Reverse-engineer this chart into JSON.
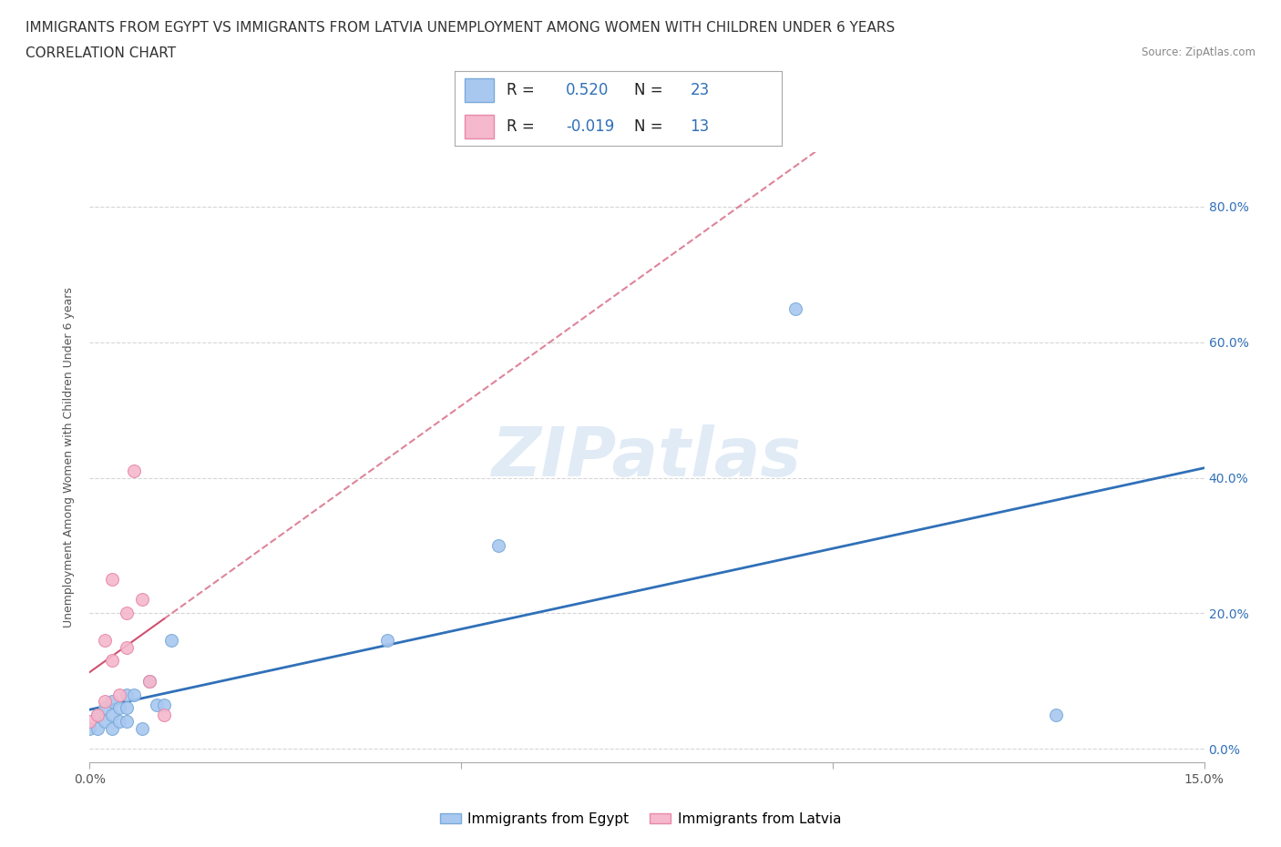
{
  "title_line1": "IMMIGRANTS FROM EGYPT VS IMMIGRANTS FROM LATVIA UNEMPLOYMENT AMONG WOMEN WITH CHILDREN UNDER 6 YEARS",
  "title_line2": "CORRELATION CHART",
  "source": "Source: ZipAtlas.com",
  "ylabel": "Unemployment Among Women with Children Under 6 years",
  "xlim": [
    0.0,
    0.15
  ],
  "ylim": [
    -0.02,
    0.88
  ],
  "yticks": [
    0.0,
    0.2,
    0.4,
    0.6,
    0.8
  ],
  "ytick_labels": [
    "0.0%",
    "20.0%",
    "40.0%",
    "60.0%",
    "80.0%"
  ],
  "xticks": [
    0.0,
    0.05,
    0.1,
    0.15
  ],
  "xtick_labels": [
    "0.0%",
    "",
    "",
    "15.0%"
  ],
  "watermark": "ZIPatlas",
  "R_egypt": 0.52,
  "N_egypt": 23,
  "R_latvia": -0.019,
  "N_latvia": 13,
  "egypt_color": "#A8C8F0",
  "egypt_edge": "#7AAAD8",
  "latvia_color": "#F5B8CC",
  "latvia_edge": "#E888A8",
  "trend_egypt_color": "#3070B8",
  "trend_latvia_color": "#D05070",
  "egypt_x": [
    0.0,
    0.001,
    0.001,
    0.002,
    0.002,
    0.003,
    0.003,
    0.003,
    0.004,
    0.004,
    0.005,
    0.005,
    0.005,
    0.006,
    0.007,
    0.008,
    0.009,
    0.01,
    0.011,
    0.04,
    0.055,
    0.095,
    0.13
  ],
  "egypt_y": [
    0.03,
    0.03,
    0.05,
    0.04,
    0.06,
    0.03,
    0.05,
    0.07,
    0.04,
    0.06,
    0.04,
    0.06,
    0.08,
    0.08,
    0.03,
    0.1,
    0.065,
    0.065,
    0.16,
    0.16,
    0.3,
    0.65,
    0.05
  ],
  "latvia_x": [
    0.0,
    0.001,
    0.002,
    0.002,
    0.003,
    0.003,
    0.004,
    0.005,
    0.005,
    0.006,
    0.007,
    0.008,
    0.01
  ],
  "latvia_y": [
    0.04,
    0.05,
    0.07,
    0.16,
    0.13,
    0.25,
    0.08,
    0.15,
    0.2,
    0.41,
    0.22,
    0.1,
    0.05
  ],
  "bg_color": "#FFFFFF",
  "grid_color": "#CCCCCC",
  "title_fontsize": 11,
  "axis_label_fontsize": 9,
  "tick_fontsize": 10,
  "dot_size": 100
}
